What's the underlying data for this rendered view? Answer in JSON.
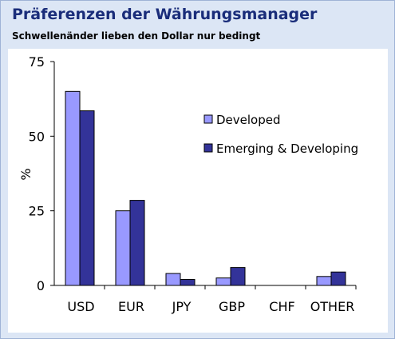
{
  "header": {
    "title": "Präferenzen der Währungsmanager",
    "subtitle": "Schwellenänder lieben den Dollar nur bedingt"
  },
  "chart_data": {
    "type": "bar",
    "categories": [
      "USD",
      "EUR",
      "JPY",
      "GBP",
      "CHF",
      "OTHER"
    ],
    "series": [
      {
        "name": "Developed",
        "values": [
          65,
          25,
          4,
          2.5,
          0,
          3
        ],
        "color": "#9999ff"
      },
      {
        "name": "Emerging & Developing",
        "values": [
          58.5,
          28.5,
          2,
          6,
          0,
          4.5
        ],
        "color": "#333399"
      }
    ],
    "ylabel": "%",
    "ylim": [
      0,
      75
    ],
    "yticks": [
      "0",
      "25",
      "50",
      "75"
    ],
    "legend_position": "upper-right",
    "grid": false
  }
}
